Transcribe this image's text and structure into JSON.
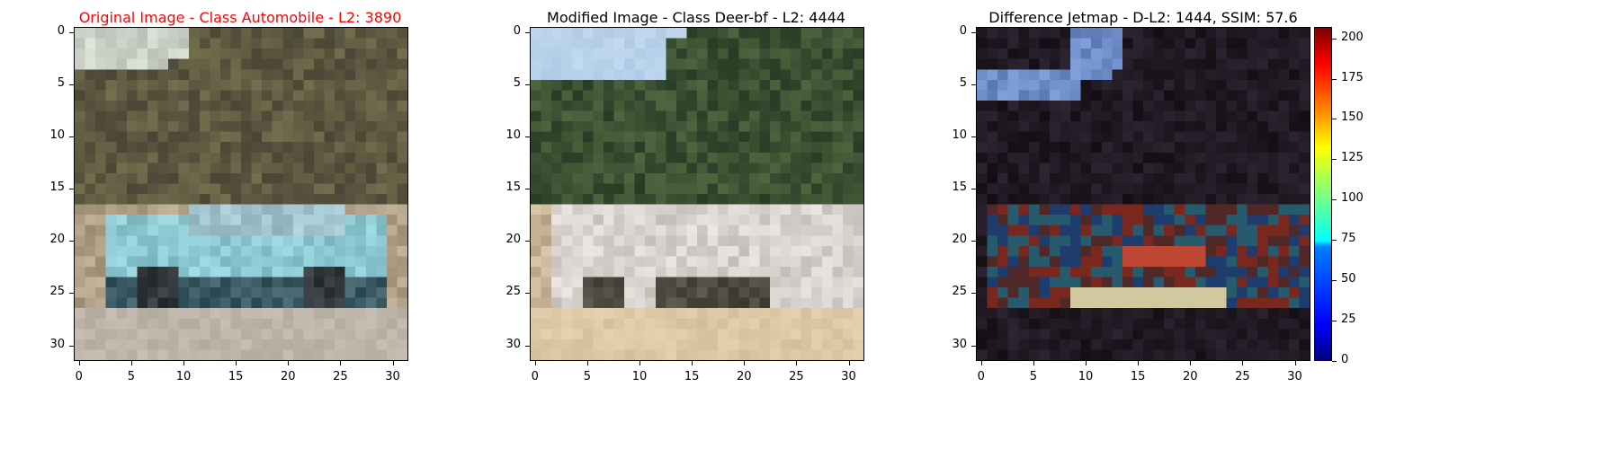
{
  "panels": [
    {
      "title": "Original Image - Class Automobile - L2: 3890",
      "title_color": "#ff0000",
      "image": "car-photo-pixelated"
    },
    {
      "title": "Modified Image - Class Deer-bf - L2: 4444",
      "title_color": "#000000",
      "image": "perturbed-car-photo-pixelated"
    },
    {
      "title": "Difference Jetmap - D-L2: 1444, SSIM: 57.6",
      "title_color": "#000000",
      "image": "difference-jet-heatmap"
    }
  ],
  "axis_ticks": {
    "y": [
      "0",
      "5",
      "10",
      "15",
      "20",
      "25",
      "30"
    ],
    "x": [
      "0",
      "5",
      "10",
      "15",
      "20",
      "25",
      "30"
    ]
  },
  "colorbar": {
    "ticks": [
      "0",
      "25",
      "50",
      "75",
      "100",
      "125",
      "150",
      "175",
      "200"
    ],
    "range": [
      0,
      207
    ],
    "colormap": "jet"
  }
}
